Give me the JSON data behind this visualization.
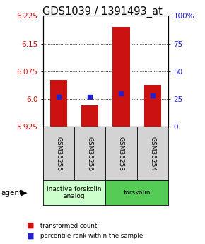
{
  "title": "GDS1039 / 1391493_at",
  "categories": [
    "GSM35255",
    "GSM35256",
    "GSM35253",
    "GSM35254"
  ],
  "bar_values": [
    6.052,
    5.984,
    6.196,
    6.038
  ],
  "percentile_values": [
    27,
    27,
    30,
    28
  ],
  "ylim_left": [
    5.925,
    6.225
  ],
  "ylim_right": [
    0,
    100
  ],
  "yticks_left": [
    5.925,
    6.0,
    6.075,
    6.15,
    6.225
  ],
  "yticks_right": [
    0,
    25,
    50,
    75,
    100
  ],
  "bar_color": "#cc1111",
  "percentile_color": "#2222cc",
  "background_color": "#ffffff",
  "agent_groups": [
    {
      "label": "inactive forskolin\nanalog",
      "indices": [
        0,
        1
      ],
      "color": "#ccffcc"
    },
    {
      "label": "forskolin",
      "indices": [
        2,
        3
      ],
      "color": "#55cc55"
    }
  ],
  "legend_bar_label": "transformed count",
  "legend_pct_label": "percentile rank within the sample",
  "agent_label": "agent",
  "title_fontsize": 10.5,
  "tick_fontsize": 7.5,
  "bar_width": 0.55,
  "baseline": 5.925
}
